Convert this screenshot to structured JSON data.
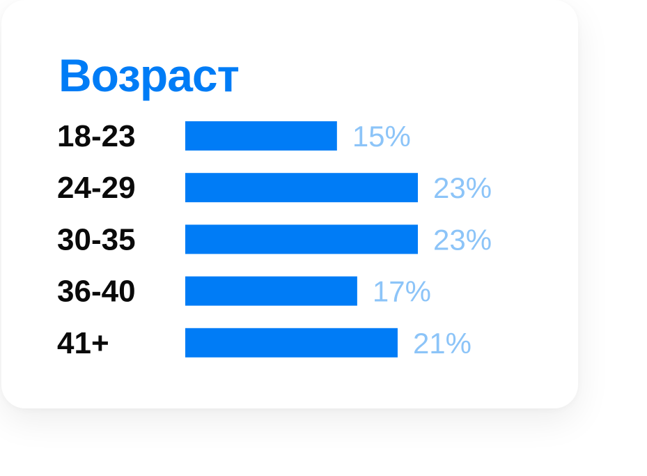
{
  "card": {
    "title": "Возраст"
  },
  "colors": {
    "accent": "#007CF6",
    "value_label": "#8CC4F8",
    "text": "#0A0A0A"
  },
  "chart_data": {
    "type": "bar",
    "orientation": "horizontal",
    "title": "Возраст",
    "categories": [
      "18-23",
      "24-29",
      "30-35",
      "36-40",
      "41+"
    ],
    "values": [
      15,
      23,
      23,
      17,
      21
    ],
    "value_labels": [
      "15%",
      "23%",
      "23%",
      "17%",
      "21%"
    ],
    "unit": "%",
    "xlim": [
      0,
      23
    ],
    "grid": false,
    "legend": "none"
  }
}
